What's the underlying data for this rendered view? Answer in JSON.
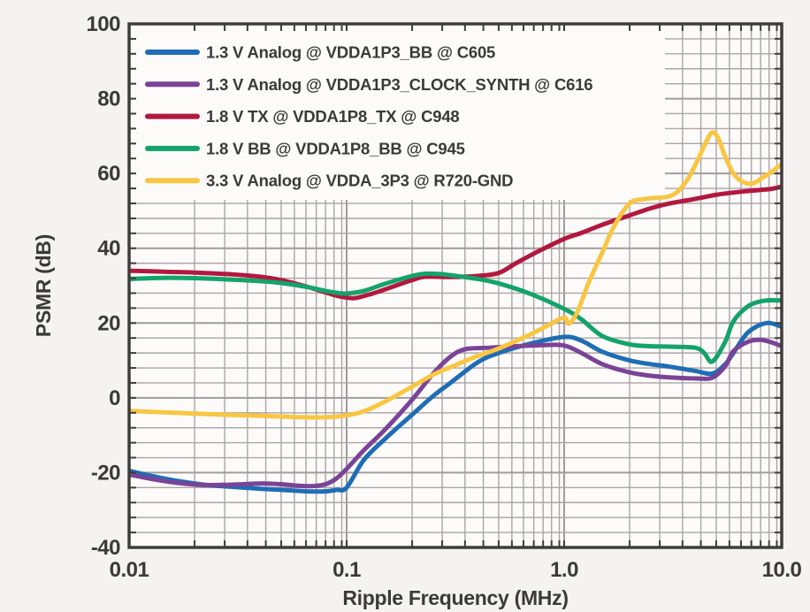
{
  "figure": {
    "background": "#f4f3f1",
    "plot_background": "#fcfbfa",
    "grid_minor_color": "#aba5a4",
    "grid_major_color": "#a29b9a",
    "axis_color": "#403c3a",
    "text_color": "#3c3938"
  },
  "chart_data": {
    "type": "line",
    "x_scale": "log",
    "xlabel": "Ripple Frequency (MHz)",
    "ylabel": "PSMR (dB)",
    "xlim": [
      0.01,
      10
    ],
    "ylim": [
      -40,
      100
    ],
    "x_ticks": [
      {
        "value": 0.01,
        "label": "0.01"
      },
      {
        "value": 0.1,
        "label": "0.1"
      },
      {
        "value": 1.0,
        "label": "1.0"
      },
      {
        "value": 10.0,
        "label": "10.0"
      }
    ],
    "y_ticks": [
      {
        "value": 100,
        "label": "100"
      },
      {
        "value": 80,
        "label": "80"
      },
      {
        "value": 60,
        "label": "60"
      },
      {
        "value": 40,
        "label": "40"
      },
      {
        "value": 20,
        "label": "20"
      },
      {
        "value": 0,
        "label": "0"
      },
      {
        "value": -20,
        "label": "-20"
      },
      {
        "value": -40,
        "label": "-40"
      }
    ],
    "y_minor_step": 4,
    "x_minor_multipliers": [
      2,
      2.75,
      3.5,
      4.25,
      5,
      5.75,
      6.5,
      7.25,
      8,
      8.75,
      9.5
    ],
    "grid": true,
    "legend_position": "upper-left",
    "series": [
      {
        "name": "1.3 V Analog @ VDDA1P3_BB @ C605",
        "color": "#1e6db5",
        "points": [
          [
            0.01,
            -19.5
          ],
          [
            0.013,
            -21.0
          ],
          [
            0.017,
            -22.3
          ],
          [
            0.022,
            -23.2
          ],
          [
            0.03,
            -23.8
          ],
          [
            0.04,
            -24.3
          ],
          [
            0.05,
            -24.6
          ],
          [
            0.065,
            -25.0
          ],
          [
            0.08,
            -25.0
          ],
          [
            0.09,
            -24.6
          ],
          [
            0.1,
            -24.0
          ],
          [
            0.12,
            -16.6
          ],
          [
            0.15,
            -11.0
          ],
          [
            0.2,
            -4.5
          ],
          [
            0.25,
            0.5
          ],
          [
            0.3,
            4.0
          ],
          [
            0.4,
            9.5
          ],
          [
            0.5,
            12.0
          ],
          [
            0.7,
            14.5
          ],
          [
            1.0,
            16.3
          ],
          [
            1.2,
            15.3
          ],
          [
            1.5,
            12.3
          ],
          [
            2.0,
            10.0
          ],
          [
            2.5,
            9.0
          ],
          [
            3.0,
            8.4
          ],
          [
            4.0,
            7.2
          ],
          [
            4.8,
            6.5
          ],
          [
            5.5,
            9.0
          ],
          [
            6.0,
            12.0
          ],
          [
            7.0,
            17.5
          ],
          [
            8.5,
            20.0
          ],
          [
            10.0,
            19.0
          ]
        ]
      },
      {
        "name": "1.3 V Analog @ VDDA1P3_CLOCK_SYNTH @ C616",
        "color": "#7a4397",
        "points": [
          [
            0.01,
            -20.5
          ],
          [
            0.013,
            -21.8
          ],
          [
            0.017,
            -22.8
          ],
          [
            0.022,
            -23.3
          ],
          [
            0.03,
            -23.2
          ],
          [
            0.04,
            -22.9
          ],
          [
            0.05,
            -23.1
          ],
          [
            0.06,
            -23.5
          ],
          [
            0.07,
            -23.6
          ],
          [
            0.08,
            -23.1
          ],
          [
            0.09,
            -21.5
          ],
          [
            0.1,
            -19.0
          ],
          [
            0.12,
            -14.0
          ],
          [
            0.15,
            -8.5
          ],
          [
            0.2,
            -0.5
          ],
          [
            0.25,
            6.5
          ],
          [
            0.3,
            11.0
          ],
          [
            0.35,
            13.0
          ],
          [
            0.45,
            13.4
          ],
          [
            0.6,
            13.8
          ],
          [
            0.8,
            14.1
          ],
          [
            1.0,
            14.0
          ],
          [
            1.2,
            12.0
          ],
          [
            1.5,
            9.0
          ],
          [
            2.0,
            6.8
          ],
          [
            2.5,
            5.9
          ],
          [
            3.0,
            5.5
          ],
          [
            4.0,
            5.2
          ],
          [
            4.8,
            5.4
          ],
          [
            5.5,
            8.5
          ],
          [
            6.0,
            12.5
          ],
          [
            7.0,
            15.0
          ],
          [
            8.0,
            15.5
          ],
          [
            9.0,
            14.8
          ],
          [
            10.0,
            13.8
          ]
        ]
      },
      {
        "name": "1.8 V TX @ VDDA1P8_TX @ C948",
        "color": "#b2183f",
        "points": [
          [
            0.01,
            34.0
          ],
          [
            0.015,
            33.7
          ],
          [
            0.02,
            33.5
          ],
          [
            0.03,
            33.0
          ],
          [
            0.04,
            32.4
          ],
          [
            0.05,
            31.5
          ],
          [
            0.065,
            29.8
          ],
          [
            0.08,
            28.2
          ],
          [
            0.09,
            27.3
          ],
          [
            0.1,
            26.8
          ],
          [
            0.11,
            26.7
          ],
          [
            0.13,
            27.8
          ],
          [
            0.15,
            29.0
          ],
          [
            0.2,
            31.5
          ],
          [
            0.23,
            32.4
          ],
          [
            0.3,
            32.3
          ],
          [
            0.4,
            32.6
          ],
          [
            0.5,
            33.4
          ],
          [
            0.6,
            36.0
          ],
          [
            0.75,
            39.0
          ],
          [
            1.0,
            42.5
          ],
          [
            1.2,
            44.1
          ],
          [
            1.5,
            46.3
          ],
          [
            2.0,
            48.8
          ],
          [
            2.5,
            50.7
          ],
          [
            3.0,
            51.9
          ],
          [
            4.0,
            53.2
          ],
          [
            5.0,
            54.3
          ],
          [
            6.0,
            54.9
          ],
          [
            7.0,
            55.3
          ],
          [
            8.0,
            55.6
          ],
          [
            9.0,
            55.9
          ],
          [
            10.0,
            56.5
          ]
        ]
      },
      {
        "name": "1.8 V BB @ VDDA1P8_BB @ C945",
        "color": "#13a36b",
        "points": [
          [
            0.01,
            31.8
          ],
          [
            0.015,
            32.1
          ],
          [
            0.02,
            32.0
          ],
          [
            0.03,
            31.6
          ],
          [
            0.04,
            31.2
          ],
          [
            0.05,
            30.7
          ],
          [
            0.065,
            29.7
          ],
          [
            0.08,
            28.6
          ],
          [
            0.09,
            28.1
          ],
          [
            0.1,
            27.9
          ],
          [
            0.12,
            28.6
          ],
          [
            0.15,
            30.5
          ],
          [
            0.2,
            32.6
          ],
          [
            0.23,
            33.2
          ],
          [
            0.27,
            33.1
          ],
          [
            0.3,
            32.8
          ],
          [
            0.4,
            31.8
          ],
          [
            0.5,
            30.6
          ],
          [
            0.7,
            27.8
          ],
          [
            1.0,
            23.8
          ],
          [
            1.2,
            21.0
          ],
          [
            1.5,
            16.5
          ],
          [
            2.0,
            14.3
          ],
          [
            2.5,
            13.8
          ],
          [
            3.0,
            13.7
          ],
          [
            4.0,
            13.4
          ],
          [
            4.4,
            12.0
          ],
          [
            4.8,
            9.7
          ],
          [
            5.5,
            15.0
          ],
          [
            6.0,
            20.5
          ],
          [
            7.0,
            24.5
          ],
          [
            8.0,
            25.8
          ],
          [
            9.0,
            26.1
          ],
          [
            10.0,
            26.0
          ]
        ]
      },
      {
        "name": "3.3 V Analog @ VDDA_3P3 @ R720-GND",
        "color": "#f8c643",
        "points": [
          [
            0.01,
            -3.5
          ],
          [
            0.015,
            -3.9
          ],
          [
            0.02,
            -4.2
          ],
          [
            0.03,
            -4.6
          ],
          [
            0.04,
            -4.8
          ],
          [
            0.05,
            -5.0
          ],
          [
            0.065,
            -5.2
          ],
          [
            0.08,
            -5.2
          ],
          [
            0.09,
            -5.0
          ],
          [
            0.1,
            -4.7
          ],
          [
            0.12,
            -3.6
          ],
          [
            0.15,
            -1.0
          ],
          [
            0.2,
            3.0
          ],
          [
            0.25,
            6.2
          ],
          [
            0.3,
            8.2
          ],
          [
            0.4,
            11.2
          ],
          [
            0.5,
            13.2
          ],
          [
            0.7,
            17.0
          ],
          [
            0.85,
            19.5
          ],
          [
            1.0,
            21.5
          ],
          [
            1.05,
            19.8
          ],
          [
            1.15,
            23.0
          ],
          [
            1.3,
            31.0
          ],
          [
            1.5,
            39.0
          ],
          [
            1.7,
            46.0
          ],
          [
            2.0,
            52.0
          ],
          [
            2.3,
            53.1
          ],
          [
            2.7,
            53.5
          ],
          [
            3.0,
            53.8
          ],
          [
            3.3,
            55.0
          ],
          [
            3.7,
            58.5
          ],
          [
            4.1,
            63.5
          ],
          [
            4.5,
            68.5
          ],
          [
            4.8,
            71.0
          ],
          [
            5.1,
            69.5
          ],
          [
            5.5,
            64.5
          ],
          [
            6.0,
            60.0
          ],
          [
            6.5,
            58.0
          ],
          [
            7.0,
            57.3
          ],
          [
            7.5,
            57.5
          ],
          [
            8.0,
            58.5
          ],
          [
            9.0,
            60.5
          ],
          [
            10.0,
            62.5
          ]
        ]
      }
    ]
  }
}
